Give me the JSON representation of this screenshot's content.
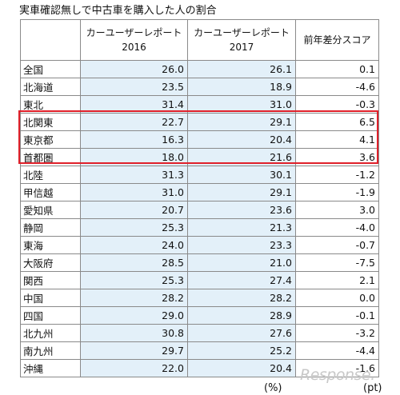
{
  "title": "実車確認無しで中古車を購入した人の割合",
  "columns": {
    "region": "",
    "y2016": "カーユーザーレポート\n2016",
    "y2017": "カーユーザーレポート\n2017",
    "diff": "前年差分スコア"
  },
  "units": {
    "percent": "(%)",
    "point": "(pt)"
  },
  "watermark": "Response.",
  "chart_data": {
    "type": "table",
    "title": "実車確認無しで中古車を購入した人の割合",
    "columns": [
      "カーユーザーレポート 2016",
      "カーユーザーレポート 2017",
      "前年差分スコア"
    ],
    "units": [
      "%",
      "%",
      "pt"
    ],
    "highlighted_rows": [
      "北関東",
      "東京都",
      "首都圏"
    ],
    "rows": [
      {
        "region": "全国",
        "v2016": "26.0",
        "v2017": "26.1",
        "diff": "0.1"
      },
      {
        "region": "北海道",
        "v2016": "23.5",
        "v2017": "18.9",
        "diff": "-4.6"
      },
      {
        "region": "東北",
        "v2016": "31.4",
        "v2017": "31.0",
        "diff": "-0.3"
      },
      {
        "region": "北関東",
        "v2016": "22.7",
        "v2017": "29.1",
        "diff": "6.5"
      },
      {
        "region": "東京都",
        "v2016": "16.3",
        "v2017": "20.4",
        "diff": "4.1"
      },
      {
        "region": "首都圏",
        "v2016": "18.0",
        "v2017": "21.6",
        "diff": "3.6"
      },
      {
        "region": "北陸",
        "v2016": "31.3",
        "v2017": "30.1",
        "diff": "-1.2"
      },
      {
        "region": "甲信越",
        "v2016": "31.0",
        "v2017": "29.1",
        "diff": "-1.9"
      },
      {
        "region": "愛知県",
        "v2016": "20.7",
        "v2017": "23.6",
        "diff": "3.0"
      },
      {
        "region": "静岡",
        "v2016": "25.3",
        "v2017": "21.3",
        "diff": "-4.0"
      },
      {
        "region": "東海",
        "v2016": "24.0",
        "v2017": "23.3",
        "diff": "-0.7"
      },
      {
        "region": "大阪府",
        "v2016": "28.5",
        "v2017": "21.0",
        "diff": "-7.5"
      },
      {
        "region": "関西",
        "v2016": "25.3",
        "v2017": "27.4",
        "diff": "2.1"
      },
      {
        "region": "中国",
        "v2016": "28.2",
        "v2017": "28.2",
        "diff": "0.0"
      },
      {
        "region": "四国",
        "v2016": "29.0",
        "v2017": "28.9",
        "diff": "-0.1"
      },
      {
        "region": "北九州",
        "v2016": "30.8",
        "v2017": "27.6",
        "diff": "-3.2"
      },
      {
        "region": "南九州",
        "v2016": "29.7",
        "v2017": "25.2",
        "diff": "-4.4"
      },
      {
        "region": "沖縄",
        "v2016": "22.0",
        "v2017": "20.4",
        "diff": "-1.6"
      }
    ]
  }
}
